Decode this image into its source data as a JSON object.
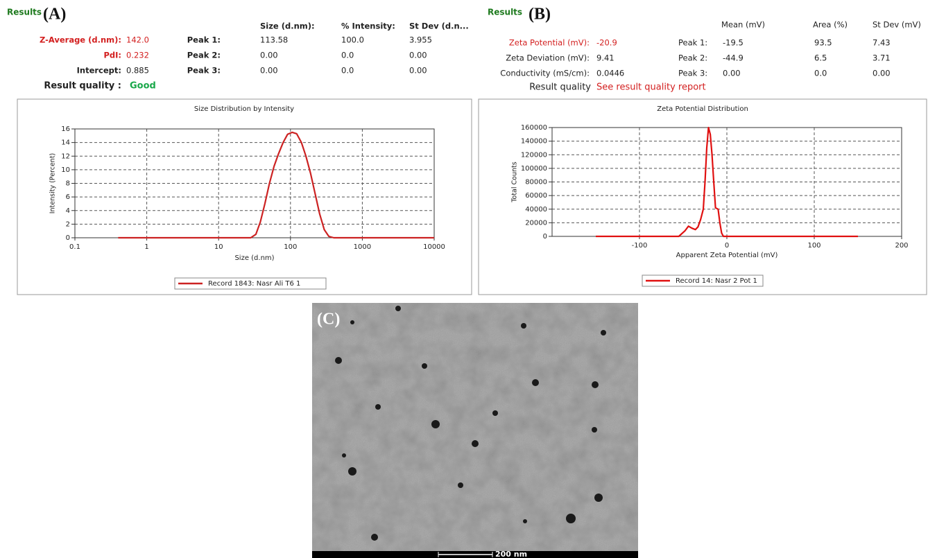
{
  "panel_a": {
    "results_label": "Results",
    "label": "(A)",
    "headers": [
      "Size (d.nm):",
      "% Intensity:",
      "St Dev (d.n..."
    ],
    "summary": [
      [
        "Z-Average (d.nm):",
        "142.0"
      ],
      [
        "PdI:",
        "0.232"
      ],
      [
        "Intercept:",
        "0.885"
      ],
      [
        "Result quality :",
        "Good"
      ]
    ],
    "peaks": [
      [
        "Peak 1:",
        "113.58",
        "100.0",
        "3.955"
      ],
      [
        "Peak 2:",
        "0.00",
        "0.0",
        "0.00"
      ],
      [
        "Peak 3:",
        "0.00",
        "0.0",
        "0.00"
      ]
    ]
  },
  "panel_b": {
    "results_label": "Results",
    "label": "(B)",
    "headers": [
      "Mean (mV)",
      "Area (%)",
      "St Dev (mV)"
    ],
    "summary": [
      [
        "Zeta Potential (mV):",
        "-20.9"
      ],
      [
        "Zeta Deviation (mV):",
        "9.41"
      ],
      [
        "Conductivity (mS/cm):",
        "0.0446"
      ],
      [
        "Result quality",
        "See result quality report"
      ]
    ],
    "peaks": [
      [
        "Peak 1:",
        "-19.5",
        "93.5",
        "7.43"
      ],
      [
        "Peak 2:",
        "-44.9",
        "6.5",
        "3.71"
      ],
      [
        "Peak 3:",
        "0.00",
        "0.0",
        "0.00"
      ]
    ]
  },
  "chart_data": [
    {
      "type": "line",
      "title": "Size Distribution by Intensity",
      "x_label": "Size (d.nm)",
      "y_label": "Intensity (Percent)",
      "x_scale": "log",
      "grid": true,
      "x": [
        0.4,
        1,
        10,
        28,
        33,
        38,
        44,
        51,
        59,
        68,
        79,
        91,
        106,
        122,
        142,
        164,
        190,
        220,
        255,
        295,
        342,
        400,
        1000,
        10000
      ],
      "series": [
        {
          "name": "Record 1843: Nasr Ali T6 1",
          "color": "#cc2222",
          "values": [
            0,
            0,
            0,
            0,
            0.5,
            2.3,
            5,
            8,
            10.5,
            12.3,
            14,
            15.2,
            15.5,
            15.3,
            14,
            12,
            9.5,
            6.5,
            3.5,
            1.2,
            0.2,
            0,
            0,
            0
          ]
        }
      ],
      "xlim": [
        0.1,
        10000
      ],
      "xticks": [
        0.1,
        1,
        10,
        100,
        1000,
        10000
      ],
      "ylim": [
        0,
        16
      ],
      "yticks": [
        0,
        2,
        4,
        6,
        8,
        10,
        12,
        14,
        16
      ]
    },
    {
      "type": "line",
      "title": "Zeta Potential Distribution",
      "x_label": "Apparent Zeta Potential (mV)",
      "y_label": "Total Counts",
      "x_scale": "linear",
      "grid": true,
      "x": [
        -150,
        -55,
        -48,
        -44,
        -40,
        -36,
        -33,
        -30,
        -27,
        -25,
        -23,
        -21,
        -19,
        -17,
        -15,
        -13,
        -10,
        -8,
        -6,
        -4,
        150
      ],
      "series": [
        {
          "name": "Record 14: Nasr 2 Pot 1",
          "color": "#e01010",
          "values": [
            0,
            0,
            8000,
            15000,
            12000,
            10000,
            14000,
            25000,
            40000,
            80000,
            130000,
            160000,
            150000,
            120000,
            80000,
            42000,
            40000,
            20000,
            5000,
            0,
            0
          ]
        }
      ],
      "xlim": [
        -200,
        200
      ],
      "xticks": [
        -100,
        0,
        100,
        200
      ],
      "ylim": [
        0,
        160000
      ],
      "yticks": [
        0,
        20000,
        40000,
        60000,
        80000,
        100000,
        120000,
        140000,
        160000
      ]
    }
  ],
  "panel_c": {
    "label": "(C)",
    "scale_bar": "200 nm"
  }
}
